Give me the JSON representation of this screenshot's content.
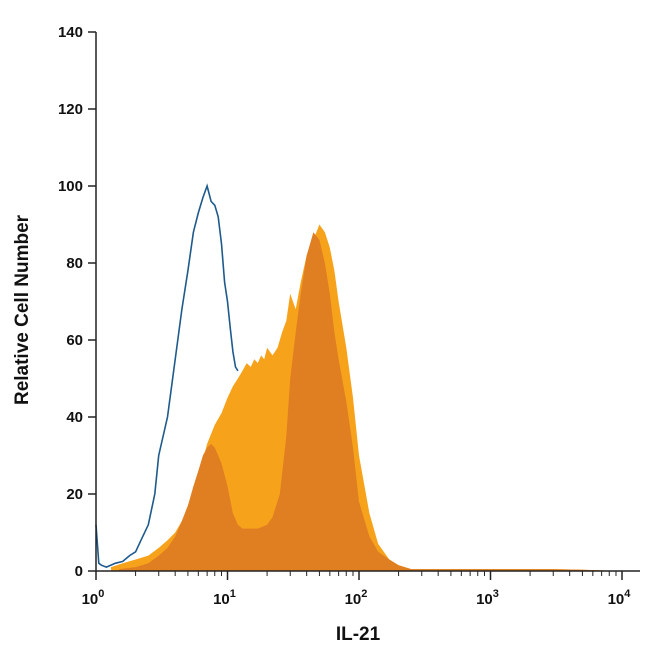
{
  "chart_data": {
    "type": "area",
    "xlabel": "IL-21",
    "ylabel": "Relative Cell Number",
    "x_scale": "log",
    "xlim": [
      1,
      10000
    ],
    "ylim": [
      0,
      140
    ],
    "x_ticks": [
      {
        "value": 1,
        "base": "10",
        "exp": "0"
      },
      {
        "value": 10,
        "base": "10",
        "exp": "1"
      },
      {
        "value": 100,
        "base": "10",
        "exp": "2"
      },
      {
        "value": 1000,
        "base": "10",
        "exp": "3"
      },
      {
        "value": 10000,
        "base": "10",
        "exp": "4"
      }
    ],
    "y_ticks": [
      "0",
      "20",
      "40",
      "60",
      "80",
      "100",
      "120",
      "140"
    ],
    "grid": false,
    "legend": "none",
    "series": [
      {
        "style": "filled",
        "color": "#F7A21B",
        "x": [
          1.3,
          1.6,
          2.0,
          2.5,
          3.0,
          3.5,
          4.0,
          4.5,
          5.0,
          5.5,
          6.0,
          6.5,
          7.0,
          8.0,
          9.0,
          10,
          11,
          12,
          13,
          14,
          15,
          16,
          17,
          18,
          19,
          20,
          22,
          24,
          26,
          28,
          30,
          33,
          36,
          40,
          45,
          50,
          55,
          60,
          65,
          70,
          80,
          90,
          100,
          120,
          140,
          170,
          200,
          250,
          300,
          500,
          1000,
          2000,
          3000,
          5000,
          10000
        ],
        "y": [
          1,
          2,
          3,
          4,
          6,
          8,
          10,
          13,
          17,
          21,
          25,
          29,
          33,
          38,
          41,
          45,
          48,
          50,
          52,
          54,
          53,
          55,
          54,
          56,
          55,
          58,
          56,
          58,
          62,
          65,
          72,
          68,
          75,
          82,
          86,
          90,
          88,
          84,
          78,
          70,
          58,
          45,
          30,
          15,
          7,
          3,
          1.5,
          0.5,
          0.5,
          0.5,
          0.5,
          0.5,
          0.5,
          0.3,
          0
        ]
      },
      {
        "style": "filled",
        "color": "#E07F22",
        "x": [
          1.5,
          2.0,
          2.5,
          3.0,
          3.5,
          4.0,
          4.5,
          5.0,
          5.5,
          6.0,
          6.5,
          7.0,
          7.5,
          8.0,
          8.5,
          9.0,
          10,
          11,
          12,
          13,
          15,
          17,
          20,
          22,
          25,
          28,
          30,
          33,
          36,
          40,
          45,
          50,
          55,
          60,
          65,
          70,
          80,
          90,
          100,
          120,
          140,
          170,
          200,
          250,
          300,
          500,
          1000,
          2000,
          3000,
          5000,
          10000
        ],
        "y": [
          0.5,
          1,
          2,
          4,
          6,
          9,
          13,
          17,
          22,
          26,
          30,
          32,
          33,
          32,
          30,
          28,
          22,
          15,
          12,
          11,
          11,
          11,
          12,
          14,
          20,
          35,
          50,
          62,
          72,
          82,
          88,
          86,
          80,
          72,
          62,
          55,
          44,
          32,
          18,
          9,
          5,
          3,
          1.5,
          0.5,
          0.5,
          0.5,
          0.5,
          0.5,
          0.5,
          0.3,
          0
        ]
      },
      {
        "style": "outline",
        "color": "#1F5A8C",
        "x": [
          1.0,
          1.05,
          1.1,
          1.2,
          1.4,
          1.6,
          1.8,
          2.0,
          2.2,
          2.5,
          2.8,
          3.0,
          3.5,
          4.0,
          4.5,
          5.0,
          5.5,
          6.0,
          6.5,
          7.0,
          7.5,
          8.0,
          8.5,
          9.0,
          9.5,
          10,
          10.5,
          11,
          11.5,
          12
        ],
        "y": [
          12,
          2,
          1.5,
          1,
          2,
          2.5,
          4,
          5,
          8,
          12,
          20,
          30,
          40,
          55,
          68,
          78,
          88,
          93,
          97,
          100,
          96,
          95,
          92,
          85,
          75,
          70,
          63,
          57,
          53,
          52
        ]
      }
    ]
  }
}
